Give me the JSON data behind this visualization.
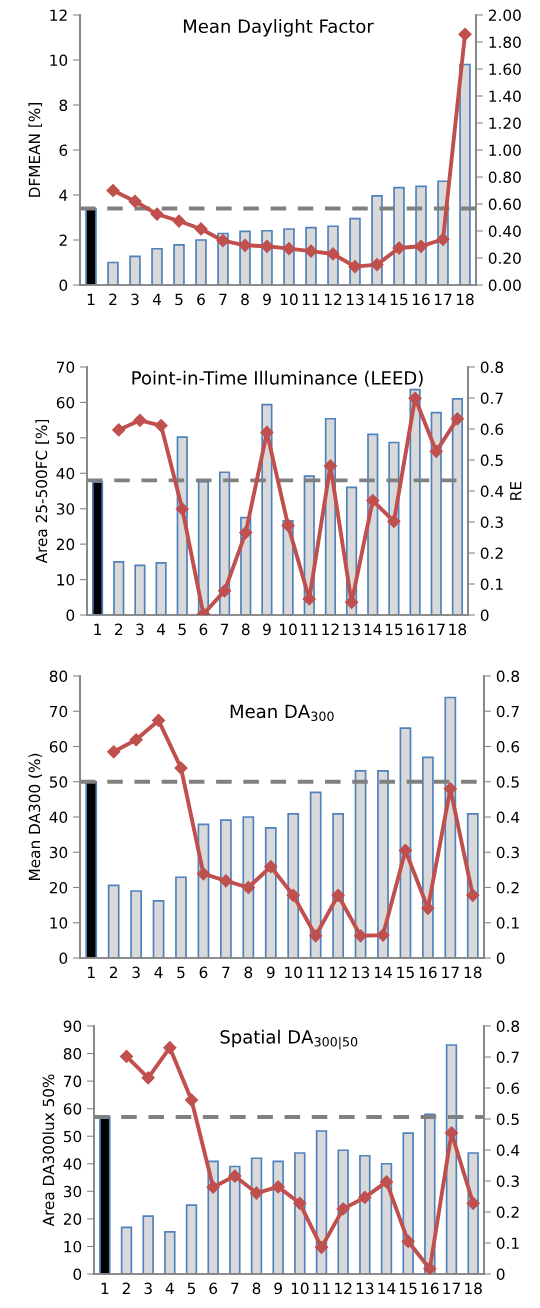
{
  "chart_data": [
    {
      "type": "bar",
      "title": "Mean Daylight Factor",
      "ylabel": "DFMEAN [%]",
      "categories": [
        "1",
        "2",
        "3",
        "4",
        "5",
        "6",
        "7",
        "8",
        "9",
        "10",
        "11",
        "12",
        "13",
        "14",
        "15",
        "16",
        "17",
        "18"
      ],
      "series": [
        {
          "colors": [
            "#000000",
            "#d9d9d9",
            "#d9d9d9",
            "#d9d9d9",
            "#d9d9d9",
            "#d9d9d9",
            "#d9d9d9",
            "#d9d9d9",
            "#d9d9d9",
            "#d9d9d9",
            "#d9d9d9",
            "#d9d9d9",
            "#d9d9d9",
            "#d9d9d9",
            "#d9d9d9",
            "#d9d9d9",
            "#d9d9d9",
            "#d9d9d9"
          ],
          "values": [
            3.4,
            1.0,
            1.27,
            1.61,
            1.78,
            2.0,
            2.29,
            2.38,
            2.41,
            2.49,
            2.55,
            2.61,
            2.95,
            3.96,
            4.33,
            4.38,
            4.61,
            9.8
          ]
        },
        {
          "type": "line",
          "axis": "y2",
          "color": "#c0504d",
          "marker": "diamond",
          "line_style": "solid",
          "values": [
            null,
            0.7,
            0.62,
            0.525,
            0.474,
            0.415,
            0.328,
            0.294,
            0.287,
            0.269,
            0.251,
            0.23,
            0.136,
            0.151,
            0.274,
            0.287,
            0.338,
            1.857
          ]
        }
      ],
      "ylim": [
        0,
        12
      ],
      "yticks": [
        0,
        2,
        4,
        6,
        8,
        10,
        12
      ],
      "y2lim": [
        0,
        2
      ],
      "y2ticks": [
        {
          "value": 0,
          "label": "0.00"
        },
        {
          "value": 0.2,
          "label": "0.20"
        },
        {
          "value": 0.4,
          "label": "0.40"
        },
        {
          "value": 0.6,
          "label": "0.60"
        },
        {
          "value": 0.8,
          "label": "0.80"
        },
        {
          "value": 1.0,
          "label": "1.00"
        },
        {
          "value": 1.2,
          "label": "1.20"
        },
        {
          "value": 1.4,
          "label": "1.40"
        },
        {
          "value": 1.6,
          "label": "1.60"
        },
        {
          "value": 1.8,
          "label": "1.80"
        },
        {
          "value": 2.0,
          "label": "2.00"
        }
      ],
      "ref_lines": [
        {
          "axis": "y",
          "value": 3.4,
          "color": "#808080",
          "line_style": "dashed"
        }
      ],
      "grid": false,
      "legend": false
    },
    {
      "type": "bar",
      "title": "Point-in-Time Illuminance (LEED)",
      "ylabel": "Area 25-500FC [%]",
      "y2label": "RE",
      "categories": [
        "1",
        "2",
        "3",
        "4",
        "5",
        "6",
        "7",
        "8",
        "9",
        "10",
        "11",
        "12",
        "13",
        "14",
        "15",
        "16",
        "17",
        "18"
      ],
      "series": [
        {
          "colors": [
            "#000000",
            "#d9d9d9",
            "#d9d9d9",
            "#d9d9d9",
            "#d9d9d9",
            "#d9d9d9",
            "#d9d9d9",
            "#d9d9d9",
            "#d9d9d9",
            "#d9d9d9",
            "#d9d9d9",
            "#d9d9d9",
            "#d9d9d9",
            "#d9d9d9",
            "#d9d9d9",
            "#d9d9d9",
            "#d9d9d9",
            "#d9d9d9"
          ],
          "values": [
            37.5,
            15,
            14,
            14.7,
            50.2,
            37.6,
            40.3,
            27.5,
            59.4,
            26.6,
            39.2,
            55.4,
            36,
            51,
            48.7,
            63.6,
            57.1,
            61
          ]
        },
        {
          "type": "line",
          "axis": "y2",
          "color": "#c0504d",
          "marker": "diamond",
          "line_style": "solid",
          "values": [
            null,
            0.597,
            0.628,
            0.611,
            0.342,
            0.003,
            0.078,
            0.266,
            0.589,
            0.289,
            0.052,
            0.481,
            0.041,
            0.369,
            0.302,
            0.699,
            0.528,
            0.633
          ]
        }
      ],
      "ylim": [
        0,
        70
      ],
      "yticks": [
        0,
        10,
        20,
        30,
        40,
        50,
        60,
        70
      ],
      "y2lim": [
        0,
        0.8
      ],
      "y2ticks": [
        0,
        0.1,
        0.2,
        0.3,
        0.4,
        0.5,
        0.6,
        0.7,
        0.8
      ],
      "ref_lines": [
        {
          "axis": "y",
          "value": 38,
          "color": "#808080",
          "line_style": "dashed"
        }
      ],
      "grid": false,
      "legend": false
    },
    {
      "type": "bar",
      "title": "Mean DA$_{300}$",
      "ylabel": "Mean DA300 (%)",
      "categories": [
        "1",
        "2",
        "3",
        "4",
        "5",
        "6",
        "7",
        "8",
        "9",
        "10",
        "11",
        "12",
        "13",
        "14",
        "15",
        "16",
        "17",
        "18"
      ],
      "series": [
        {
          "colors": [
            "#000000",
            "#d9d9d9",
            "#d9d9d9",
            "#d9d9d9",
            "#d9d9d9",
            "#d9d9d9",
            "#d9d9d9",
            "#d9d9d9",
            "#d9d9d9",
            "#d9d9d9",
            "#d9d9d9",
            "#d9d9d9",
            "#d9d9d9",
            "#d9d9d9",
            "#d9d9d9",
            "#d9d9d9",
            "#d9d9d9",
            "#d9d9d9"
          ],
          "values": [
            50,
            20.6,
            19,
            16.2,
            22.9,
            37.9,
            39.1,
            40,
            36.9,
            40.9,
            47,
            40.9,
            53.1,
            53.1,
            65.2,
            56.9,
            73.9,
            40.9
          ]
        },
        {
          "type": "line",
          "axis": "y2",
          "color": "#c0504d",
          "marker": "diamond",
          "line_style": "solid",
          "values": [
            null,
            0.585,
            0.619,
            0.674,
            0.539,
            0.239,
            0.219,
            0.2,
            0.259,
            0.178,
            0.063,
            0.178,
            0.063,
            0.065,
            0.305,
            0.141,
            0.48,
            0.178
          ]
        }
      ],
      "ylim": [
        0,
        80
      ],
      "yticks": [
        0,
        10,
        20,
        30,
        40,
        50,
        60,
        70,
        80
      ],
      "y2lim": [
        0,
        0.8
      ],
      "y2ticks": [
        0,
        0.1,
        0.2,
        0.3,
        0.4,
        0.5,
        0.6,
        0.7,
        0.8
      ],
      "ref_lines": [
        {
          "axis": "y",
          "value": 50,
          "color": "#808080",
          "line_style": "dashed"
        }
      ],
      "grid": false,
      "legend": false
    },
    {
      "type": "bar",
      "title": "Spatial DA$_{300|50}$",
      "ylabel": "Area DA300lux 50%",
      "categories": [
        "1",
        "2",
        "3",
        "4",
        "5",
        "6",
        "7",
        "8",
        "9",
        "10",
        "11",
        "12",
        "13",
        "14",
        "15",
        "16",
        "17",
        "18"
      ],
      "series": [
        {
          "colors": [
            "#000000",
            "#d9d9d9",
            "#d9d9d9",
            "#d9d9d9",
            "#d9d9d9",
            "#d9d9d9",
            "#d9d9d9",
            "#d9d9d9",
            "#d9d9d9",
            "#d9d9d9",
            "#d9d9d9",
            "#d9d9d9",
            "#d9d9d9",
            "#d9d9d9",
            "#d9d9d9",
            "#d9d9d9",
            "#d9d9d9",
            "#d9d9d9"
          ],
          "values": [
            57.2,
            16.9,
            21,
            15.3,
            25,
            40.9,
            39,
            42,
            40.9,
            43.9,
            51.9,
            44.9,
            42.9,
            40,
            51.1,
            57.9,
            83.1,
            43.9
          ]
        },
        {
          "type": "line",
          "axis": "y2",
          "color": "#c0504d",
          "marker": "diamond",
          "line_style": "solid",
          "values": [
            null,
            0.702,
            0.633,
            0.73,
            0.561,
            0.28,
            0.316,
            0.261,
            0.281,
            0.228,
            0.086,
            0.21,
            0.247,
            0.297,
            0.105,
            0.017,
            0.455,
            0.228
          ]
        }
      ],
      "ylim": [
        0,
        90
      ],
      "yticks": [
        0,
        10,
        20,
        30,
        40,
        50,
        60,
        70,
        80,
        90
      ],
      "y2lim": [
        0,
        0.8
      ],
      "y2ticks": [
        0,
        0.1,
        0.2,
        0.3,
        0.4,
        0.5,
        0.6,
        0.7,
        0.8
      ],
      "ref_lines": [
        {
          "axis": "y",
          "value": 57,
          "color": "#808080",
          "line_style": "dashed"
        }
      ],
      "grid": false,
      "legend": false
    }
  ]
}
